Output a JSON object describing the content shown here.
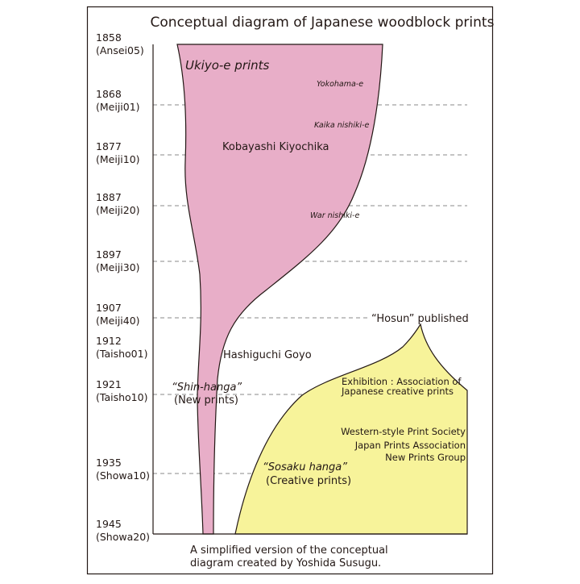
{
  "title": "Conceptual diagram of Japanese woodblock prints",
  "timeline": [
    {
      "year": "1858",
      "era": "(Ansei05)"
    },
    {
      "year": "1868",
      "era": "(Meiji01)"
    },
    {
      "year": "1877",
      "era": "(Meiji10)"
    },
    {
      "year": "1887",
      "era": "(Meiji20)"
    },
    {
      "year": "1897",
      "era": "(Meiji30)"
    },
    {
      "year": "1907",
      "era": "(Meiji40)"
    },
    {
      "year": "1912",
      "era": "(Taisho01)"
    },
    {
      "year": "1921",
      "era": "(Taisho10)"
    },
    {
      "year": "1935",
      "era": "(Showa10)"
    },
    {
      "year": "1945",
      "era": "(Showa20)"
    }
  ],
  "labels": {
    "ukiyoe": "Ukiyo-e prints",
    "yokohama": "Yokohama-e",
    "kaika": "Kaika nishiki-e",
    "kiyochika": "Kobayashi Kiyochika",
    "war": "War nishiki-e",
    "hosun": "“Hosun” published",
    "goyo": "Hashiguchi Goyo",
    "shinhanga": "“Shin-hanga”",
    "shinhanga_sub": "(New prints)",
    "exhibition": [
      "Exhibition : Association of",
      "Japanese creative prints"
    ],
    "societies": [
      "Western-style Print Society",
      "Japan Prints Association",
      "New Prints Group"
    ],
    "sosaku": "“Sosaku hanga”",
    "sosaku_sub": "(Creative prints)"
  },
  "caption": [
    "A simplified version of the conceptual",
    "diagram created by Yoshida Susugu."
  ]
}
